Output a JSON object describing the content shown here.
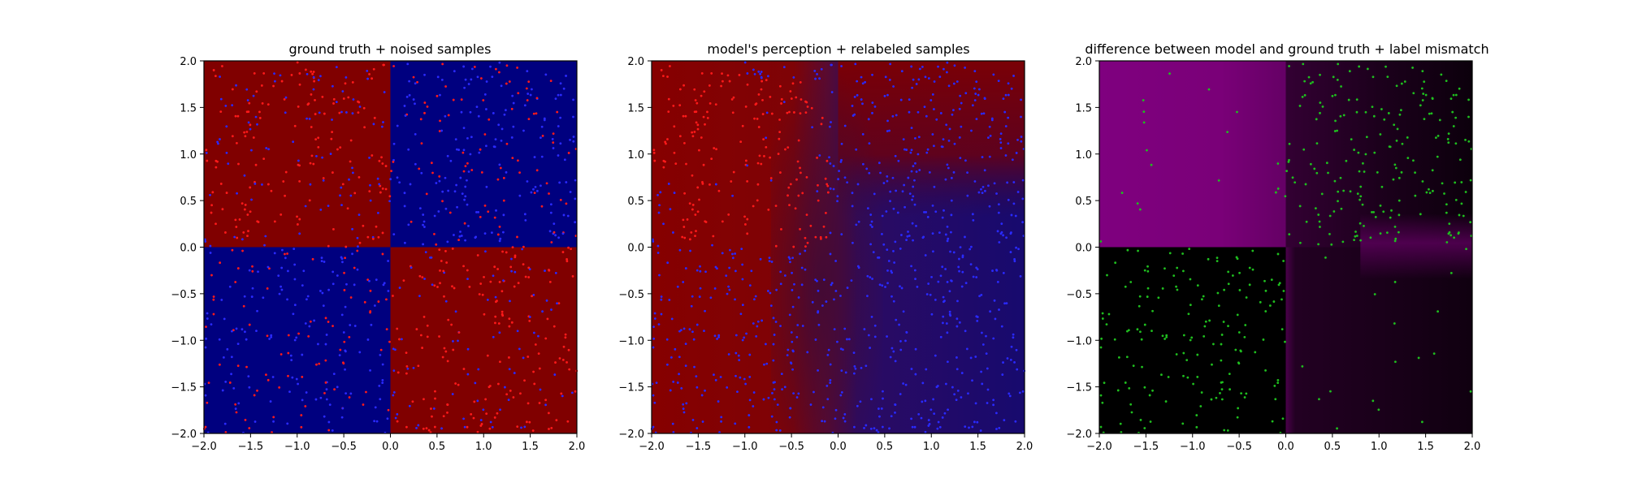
{
  "chart_data": [
    {
      "type": "heatmap",
      "title": "ground truth + noised samples",
      "xlim": [
        -2.0,
        2.0
      ],
      "ylim": [
        -2.0,
        2.0
      ],
      "xticks": [
        "-2.0",
        "-1.5",
        "-1.0",
        "-0.5",
        "0.0",
        "0.5",
        "1.0",
        "1.5",
        "2.0"
      ],
      "yticks": [
        "-2.0",
        "-1.5",
        "-1.0",
        "-0.5",
        "0.0",
        "0.5",
        "1.0",
        "1.5",
        "2.0"
      ],
      "field": "xor-quadrants: red where x<0,y>0 or x>0,y<0; blue otherwise",
      "colors": {
        "red": "#800000",
        "blue": "#00007f",
        "point_red": "#ff1a1a",
        "point_blue": "#2a2aff"
      },
      "samples": "uniform points over [-2,2]^2, colored by noisy label (about 1000)"
    },
    {
      "type": "heatmap",
      "title": "model's perception + relabeled samples",
      "xlim": [
        -2.0,
        2.0
      ],
      "ylim": [
        -2.0,
        2.0
      ],
      "xticks": [
        "-2.0",
        "-1.5",
        "-1.0",
        "-0.5",
        "0.0",
        "0.5",
        "1.0",
        "1.5",
        "2.0"
      ],
      "yticks": [
        "-2.0",
        "-1.5",
        "-1.0",
        "-0.5",
        "0.0",
        "0.5",
        "1.0",
        "1.5",
        "2.0"
      ],
      "field": "smooth red-to-blue transition around x≈0, red left, blue right, dark maroon band upper-right",
      "colors": {
        "red": "#850000",
        "blue": "#1a0a70",
        "point_red": "#ff1a1a",
        "point_blue": "#2a2aff"
      },
      "samples": "same points relabeled by model: red in upper-left cluster, blue elsewhere"
    },
    {
      "type": "heatmap",
      "title": "difference between model and ground truth + label mismatch",
      "xlim": [
        -2.0,
        2.0
      ],
      "ylim": [
        -2.0,
        2.0
      ],
      "xticks": [
        "-2.0",
        "-1.5",
        "-1.0",
        "-0.5",
        "0.0",
        "0.5",
        "1.0",
        "1.5",
        "2.0"
      ],
      "yticks": [
        "-2.0",
        "-1.5",
        "-1.0",
        "-0.5",
        "0.0",
        "0.5",
        "1.0",
        "1.5",
        "2.0"
      ],
      "field": "magenta in upper-left quadrant, near-black lower-left, dark purple right half",
      "colors": {
        "magenta": "#800080",
        "black": "#000000",
        "point_green": "#1fbf1f"
      },
      "samples": "green points where labels mismatch, concentrated in upper-right and lower-left quadrants"
    }
  ]
}
